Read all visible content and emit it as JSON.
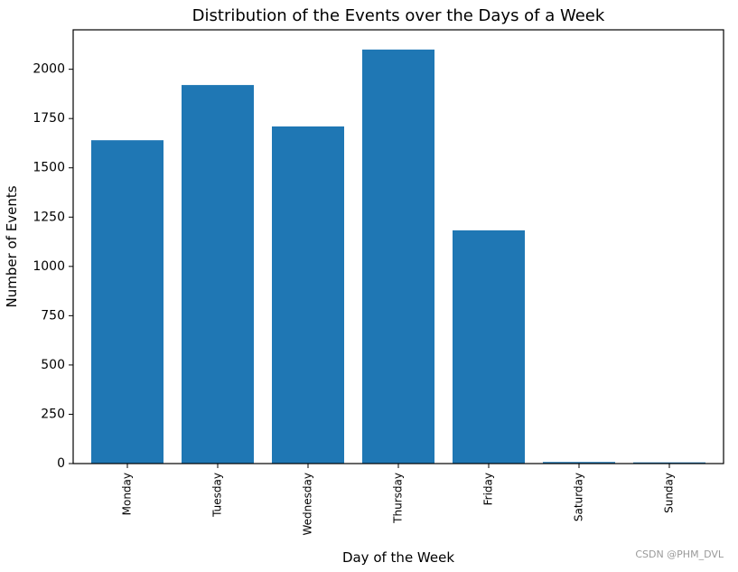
{
  "chart_data": {
    "type": "bar",
    "title": "Distribution of the Events over the Days of a Week",
    "xlabel": "Day of the Week",
    "ylabel": "Number of Events",
    "categories": [
      "Monday",
      "Tuesday",
      "Wednesday",
      "Thursday",
      "Friday",
      "Saturday",
      "Sunday"
    ],
    "values": [
      1640,
      1920,
      1710,
      2100,
      1183,
      8,
      6
    ],
    "ylim": [
      0,
      2200
    ],
    "yticks": [
      0,
      250,
      500,
      750,
      1000,
      1250,
      1500,
      1750,
      2000
    ],
    "bar_color": "#1f77b4",
    "grid": false,
    "legend": "none"
  },
  "watermark": "CSDN @PHM_DVL"
}
